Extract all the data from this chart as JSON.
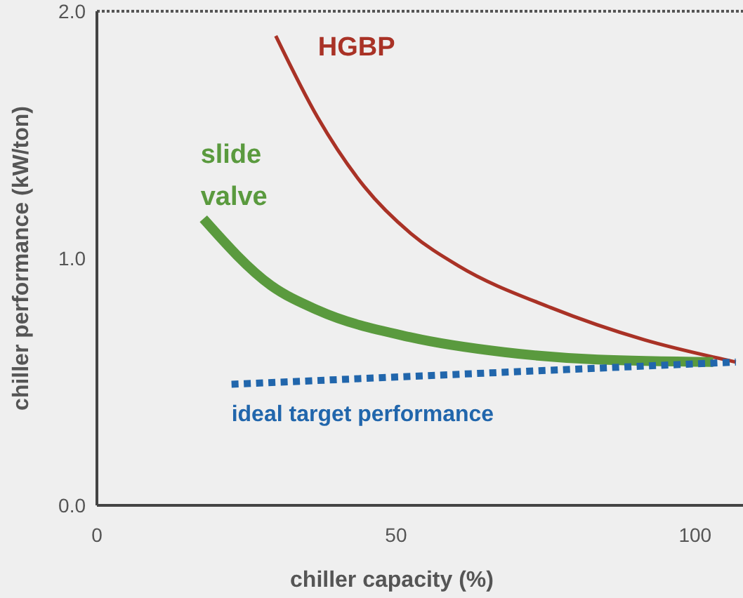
{
  "chart_data": {
    "type": "line",
    "xlabel": "chiller capacity (%)",
    "ylabel": "chiller performance (kW/ton)",
    "xlim": [
      0,
      108
    ],
    "ylim": [
      0,
      2
    ],
    "xticks": [
      0,
      50,
      100
    ],
    "yticks": [
      {
        "value": 0,
        "label": "0.0"
      },
      {
        "value": 1,
        "label": "1.0"
      },
      {
        "value": 2,
        "label": "2.0"
      }
    ],
    "grid": false,
    "ref_lines": [
      {
        "axis": "y",
        "value": 2,
        "line_style": "dotted",
        "color": "#555555"
      }
    ],
    "series": [
      {
        "name": "HGBP",
        "color": "#a93226",
        "line_style": "solid",
        "x": [
          29.9,
          36.9,
          44.7,
          52.5,
          60.4,
          75.9,
          91.5,
          106.8
        ],
        "values": [
          1.9,
          1.57,
          1.29,
          1.1,
          0.97,
          0.8,
          0.67,
          0.58
        ]
      },
      {
        "name": "slide valve",
        "color": "#5a9a3e",
        "line_style": "solid",
        "x": [
          17.8,
          29.1,
          36.9,
          52.5,
          68.1,
          83.7,
          103
        ],
        "values": [
          1.16,
          0.89,
          0.79,
          0.68,
          0.62,
          0.59,
          0.58
        ]
      },
      {
        "name": "ideal target performance",
        "color": "#2166ac",
        "line_style": "dotted",
        "x": [
          22.5,
          106.8
        ],
        "values": [
          0.49,
          0.58
        ]
      }
    ]
  }
}
